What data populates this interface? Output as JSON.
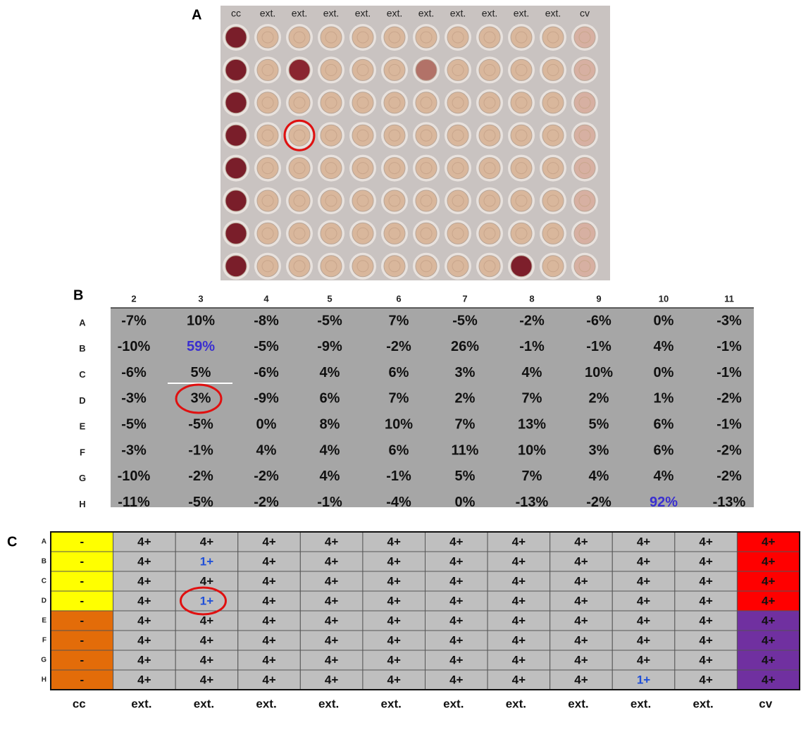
{
  "panel_a": {
    "label": "A",
    "column_labels": [
      "cc",
      "ext.",
      "ext.",
      "ext.",
      "ext.",
      "ext.",
      "ext.",
      "ext.",
      "ext.",
      "ext.",
      "ext.",
      "cv"
    ]
  },
  "panel_b": {
    "label": "B",
    "columns": [
      "2",
      "3",
      "4",
      "5",
      "6",
      "7",
      "8",
      "9",
      "10",
      "11"
    ],
    "rows": [
      {
        "label": "A",
        "cells": [
          "-7%",
          "10%",
          "-8%",
          "-5%",
          "7%",
          "-5%",
          "-2%",
          "-6%",
          "0%",
          "-3%"
        ]
      },
      {
        "label": "B",
        "cells": [
          "-10%",
          "59%",
          "-5%",
          "-9%",
          "-2%",
          "26%",
          "-1%",
          "-1%",
          "4%",
          "-1%"
        ]
      },
      {
        "label": "C",
        "cells": [
          "-6%",
          "5%",
          "-6%",
          "4%",
          "6%",
          "3%",
          "4%",
          "10%",
          "0%",
          "-1%"
        ]
      },
      {
        "label": "D",
        "cells": [
          "-3%",
          "3%",
          "-9%",
          "6%",
          "7%",
          "2%",
          "7%",
          "2%",
          "1%",
          "-2%"
        ]
      },
      {
        "label": "E",
        "cells": [
          "-5%",
          "-5%",
          "0%",
          "8%",
          "10%",
          "7%",
          "13%",
          "5%",
          "6%",
          "-1%"
        ]
      },
      {
        "label": "F",
        "cells": [
          "-3%",
          "-1%",
          "4%",
          "4%",
          "6%",
          "11%",
          "10%",
          "3%",
          "6%",
          "-2%"
        ]
      },
      {
        "label": "G",
        "cells": [
          "-10%",
          "-2%",
          "-2%",
          "4%",
          "-1%",
          "5%",
          "7%",
          "4%",
          "4%",
          "-2%"
        ]
      },
      {
        "label": "H",
        "cells": [
          "-11%",
          "-5%",
          "-2%",
          "-1%",
          "-4%",
          "0%",
          "-13%",
          "-2%",
          "92%",
          "-13%"
        ]
      }
    ]
  },
  "panel_c": {
    "label": "C",
    "rows": [
      {
        "label": "A",
        "cells": [
          "-",
          "4+",
          "4+",
          "4+",
          "4+",
          "4+",
          "4+",
          "4+",
          "4+",
          "4+",
          "4+",
          "4+"
        ]
      },
      {
        "label": "B",
        "cells": [
          "-",
          "4+",
          "1+",
          "4+",
          "4+",
          "4+",
          "4+",
          "4+",
          "4+",
          "4+",
          "4+",
          "4+"
        ]
      },
      {
        "label": "C",
        "cells": [
          "-",
          "4+",
          "4+",
          "4+",
          "4+",
          "4+",
          "4+",
          "4+",
          "4+",
          "4+",
          "4+",
          "4+"
        ]
      },
      {
        "label": "D",
        "cells": [
          "-",
          "4+",
          "1+",
          "4+",
          "4+",
          "4+",
          "4+",
          "4+",
          "4+",
          "4+",
          "4+",
          "4+"
        ]
      },
      {
        "label": "E",
        "cells": [
          "-",
          "4+",
          "4+",
          "4+",
          "4+",
          "4+",
          "4+",
          "4+",
          "4+",
          "4+",
          "4+",
          "4+"
        ]
      },
      {
        "label": "F",
        "cells": [
          "-",
          "4+",
          "4+",
          "4+",
          "4+",
          "4+",
          "4+",
          "4+",
          "4+",
          "4+",
          "4+",
          "4+"
        ]
      },
      {
        "label": "G",
        "cells": [
          "-",
          "4+",
          "4+",
          "4+",
          "4+",
          "4+",
          "4+",
          "4+",
          "4+",
          "4+",
          "4+",
          "4+"
        ]
      },
      {
        "label": "H",
        "cells": [
          "-",
          "4+",
          "4+",
          "4+",
          "4+",
          "4+",
          "4+",
          "4+",
          "4+",
          "1+",
          "4+",
          "4+"
        ]
      }
    ],
    "column_labels": [
      "cc",
      "ext.",
      "ext.",
      "ext.",
      "ext.",
      "ext.",
      "ext.",
      "ext.",
      "ext.",
      "ext.",
      "ext.",
      "cv"
    ]
  }
}
